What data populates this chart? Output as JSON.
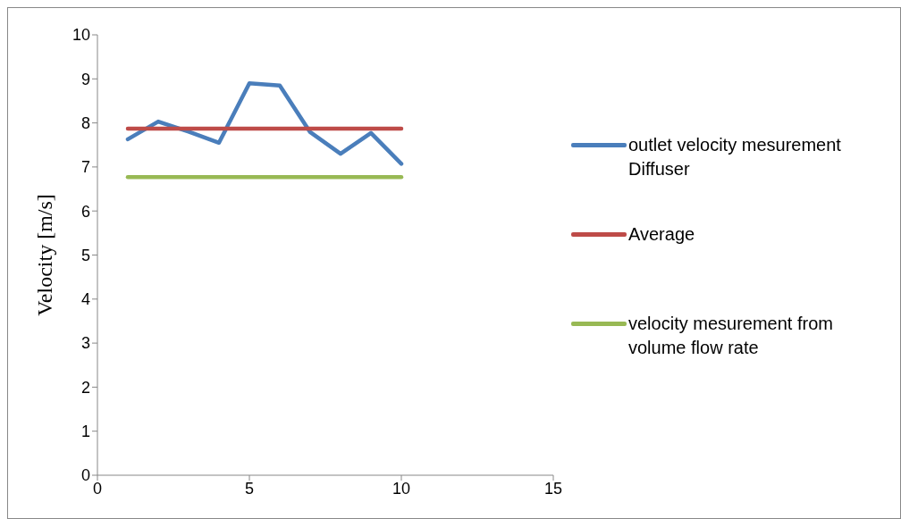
{
  "chart_data": {
    "type": "line",
    "ylabel": "Velocity [m/s]",
    "xlim": [
      0,
      15
    ],
    "xticks": [
      0,
      5,
      10,
      15
    ],
    "ylim": [
      0,
      10
    ],
    "yticks": [
      0,
      1,
      2,
      3,
      4,
      5,
      6,
      7,
      8,
      9,
      10
    ],
    "grid": false,
    "legend": "right",
    "marker": "none",
    "line_style": "solid",
    "series": [
      {
        "name": "outlet velocity mesurement Diffuser",
        "color": "#4a7ebb",
        "x": [
          1,
          2,
          3,
          4,
          5,
          6,
          7,
          8,
          9,
          10
        ],
        "values": [
          7.63,
          8.03,
          7.8,
          7.55,
          8.9,
          8.85,
          7.79,
          7.3,
          7.77,
          7.07
        ]
      },
      {
        "name": "Average",
        "color": "#be4b48",
        "x": [
          1,
          10
        ],
        "values": [
          7.87,
          7.87
        ]
      },
      {
        "name": "velocity mesurement from volume flow rate",
        "color": "#98b954",
        "x": [
          1,
          10
        ],
        "values": [
          6.77,
          6.77
        ]
      }
    ]
  }
}
